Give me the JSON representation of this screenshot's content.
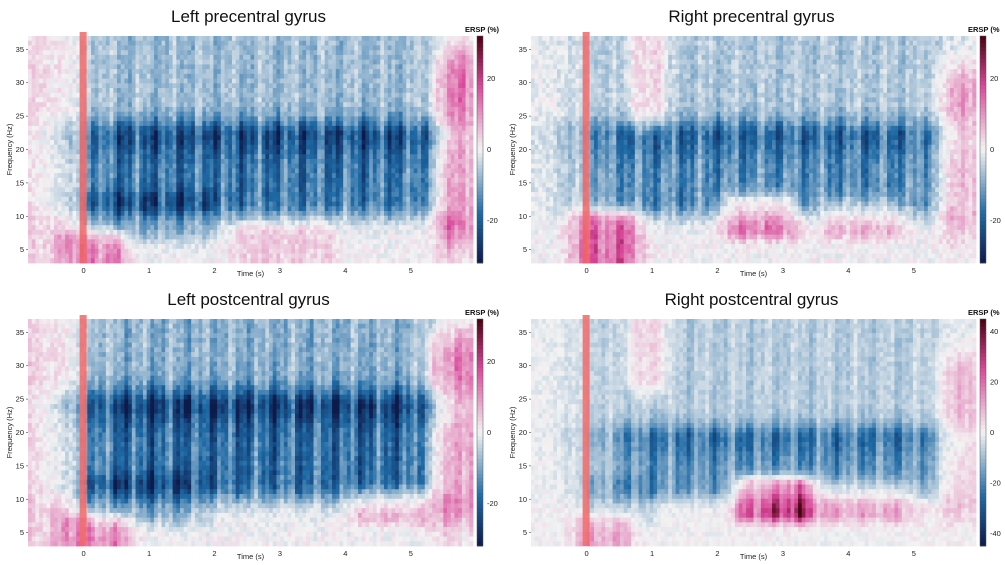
{
  "colorscale": {
    "low": "#0d1b4c",
    "mid_low": "#1f6aa5",
    "neutral": "#f3f3f3",
    "mid_high": "#d9489a",
    "high": "#4a0010",
    "stimulus_marker": "#f06868"
  },
  "chart_data": [
    {
      "type": "heatmap",
      "title": "Left precentral gyrus",
      "xlabel": "Time (s)",
      "ylabel": "Frequency (Hz)",
      "colorbar_label": "ERSP (%)",
      "xlim": [
        -0.85,
        5.95
      ],
      "ylim": [
        3,
        37
      ],
      "xticks": [
        0,
        1,
        2,
        3,
        4,
        5
      ],
      "yticks": [
        5,
        10,
        15,
        20,
        25,
        30,
        35
      ],
      "colorbar_ticks": [
        20,
        0,
        -20
      ],
      "crange": [
        -32,
        32
      ],
      "stimulus_onset": 0,
      "regions": [
        {
          "t": [
            0.2,
            5.3
          ],
          "f": [
            12,
            22
          ],
          "v": -22
        },
        {
          "t": [
            0.2,
            5.3
          ],
          "f": [
            22,
            37
          ],
          "v": -10
        },
        {
          "t": [
            0.2,
            1.8
          ],
          "f": [
            8,
            12
          ],
          "v": -10
        },
        {
          "t": [
            -0.85,
            -0.3
          ],
          "f": [
            3,
            37
          ],
          "v": 5
        },
        {
          "t": [
            -0.1,
            0.4
          ],
          "f": [
            3,
            6
          ],
          "v": 16
        },
        {
          "t": [
            2.5,
            3.6
          ],
          "f": [
            4.5,
            7
          ],
          "v": 6
        },
        {
          "t": [
            5.6,
            5.95
          ],
          "f": [
            8,
            33
          ],
          "v": 20
        }
      ]
    },
    {
      "type": "heatmap",
      "title": "Right precentral gyrus",
      "xlabel": "Time (s)",
      "ylabel": "Frequency (Hz)",
      "colorbar_label": "ERSP (%",
      "xlim": [
        -0.85,
        5.95
      ],
      "ylim": [
        3,
        37
      ],
      "xticks": [
        0,
        1,
        2,
        3,
        4,
        5
      ],
      "yticks": [
        5,
        10,
        15,
        20,
        25,
        30,
        35
      ],
      "colorbar_ticks": [
        20,
        0,
        -20
      ],
      "crange": [
        -32,
        32
      ],
      "stimulus_onset": 0,
      "regions": [
        {
          "t": [
            0.2,
            5.3
          ],
          "f": [
            12,
            22
          ],
          "v": -18
        },
        {
          "t": [
            0.2,
            5.3
          ],
          "f": [
            22,
            37
          ],
          "v": -8
        },
        {
          "t": [
            0.0,
            0.6
          ],
          "f": [
            3,
            9
          ],
          "v": 20
        },
        {
          "t": [
            2.3,
            3.0
          ],
          "f": [
            8.5,
            11.5
          ],
          "v": 18
        },
        {
          "t": [
            3.8,
            4.6
          ],
          "f": [
            8.5,
            11
          ],
          "v": 10
        },
        {
          "t": [
            0.85,
            1.0
          ],
          "f": [
            25,
            37
          ],
          "v": 12
        },
        {
          "t": [
            5.6,
            5.95
          ],
          "f": [
            10,
            30
          ],
          "v": 14
        }
      ]
    },
    {
      "type": "heatmap",
      "title": "Left postcentral gyrus",
      "xlabel": "Time (s)",
      "ylabel": "Frequency (Hz)",
      "colorbar_label": "ERSP (%)",
      "xlim": [
        -0.85,
        5.95
      ],
      "ylim": [
        3,
        37
      ],
      "xticks": [
        0,
        1,
        2,
        3,
        4,
        5
      ],
      "yticks": [
        5,
        10,
        15,
        20,
        25,
        30,
        35
      ],
      "colorbar_ticks": [
        20,
        0,
        -20
      ],
      "crange": [
        -32,
        32
      ],
      "stimulus_onset": 0,
      "regions": [
        {
          "t": [
            0.2,
            5.3
          ],
          "f": [
            12,
            24
          ],
          "v": -24
        },
        {
          "t": [
            0.2,
            5.3
          ],
          "f": [
            24,
            37
          ],
          "v": -12
        },
        {
          "t": [
            0.2,
            1.6
          ],
          "f": [
            8,
            12
          ],
          "v": -10
        },
        {
          "t": [
            -0.85,
            -0.3
          ],
          "f": [
            3,
            37
          ],
          "v": 6
        },
        {
          "t": [
            -0.1,
            0.5
          ],
          "f": [
            3,
            6
          ],
          "v": 14
        },
        {
          "t": [
            4.3,
            5.0
          ],
          "f": [
            8,
            10
          ],
          "v": 9
        },
        {
          "t": [
            5.5,
            5.95
          ],
          "f": [
            9,
            33
          ],
          "v": 20
        }
      ]
    },
    {
      "type": "heatmap",
      "title": "Right postcentral gyrus",
      "xlabel": "Time (s)",
      "ylabel": "Frequency (Hz)",
      "colorbar_label": "ERSP (%",
      "xlim": [
        -0.85,
        5.95
      ],
      "ylim": [
        3,
        37
      ],
      "xticks": [
        0,
        1,
        2,
        3,
        4,
        5
      ],
      "yticks": [
        5,
        10,
        15,
        20,
        25,
        30,
        35
      ],
      "colorbar_ticks": [
        40,
        20,
        0,
        -20,
        -40
      ],
      "crange": [
        -45,
        45
      ],
      "stimulus_onset": 0,
      "regions": [
        {
          "t": [
            0.6,
            5.3
          ],
          "f": [
            12,
            19
          ],
          "v": -22
        },
        {
          "t": [
            0.2,
            5.3
          ],
          "f": [
            19,
            37
          ],
          "v": -10
        },
        {
          "t": [
            0.1,
            0.8
          ],
          "f": [
            8,
            12
          ],
          "v": -8
        },
        {
          "t": [
            2.5,
            3.2
          ],
          "f": [
            8.5,
            11.5
          ],
          "v": 34
        },
        {
          "t": [
            3.2,
            4.8
          ],
          "f": [
            8.5,
            11
          ],
          "v": 16
        },
        {
          "t": [
            0.0,
            0.5
          ],
          "f": [
            3,
            6
          ],
          "v": 14
        },
        {
          "t": [
            0.85,
            1.0
          ],
          "f": [
            28,
            37
          ],
          "v": 16
        },
        {
          "t": [
            5.6,
            5.95
          ],
          "f": [
            10,
            30
          ],
          "v": 14
        }
      ]
    }
  ]
}
